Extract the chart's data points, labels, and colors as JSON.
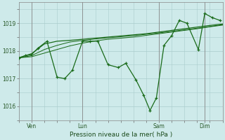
{
  "bg_color": "#ceeaea",
  "grid_color": "#aacccc",
  "line_color": "#1a6b1a",
  "xlabel": "Pression niveau de la mer( hPa )",
  "ylim": [
    1015.5,
    1019.75
  ],
  "yticks": [
    1016,
    1017,
    1018,
    1019
  ],
  "xlim": [
    0,
    8.0
  ],
  "xtick_positions": [
    0.5,
    2.5,
    5.5,
    7.3
  ],
  "xtick_labels": [
    "Ven",
    "Lun",
    "Sam",
    "Dim"
  ],
  "vlines": [
    0.5,
    2.5,
    5.5,
    7.3
  ],
  "line1_x": [
    0.0,
    0.25,
    0.5,
    0.75,
    1.1,
    1.5,
    1.8,
    2.1,
    2.5,
    2.8,
    3.1,
    3.5,
    3.9,
    4.2,
    4.6,
    4.9,
    5.15,
    5.4,
    5.7,
    6.0,
    6.3,
    6.6,
    7.05,
    7.3,
    7.6,
    7.9
  ],
  "line1_y": [
    1017.75,
    1017.83,
    1017.87,
    1018.1,
    1018.35,
    1017.05,
    1017.0,
    1017.3,
    1018.35,
    1018.35,
    1018.35,
    1017.5,
    1017.4,
    1017.55,
    1016.95,
    1016.4,
    1015.85,
    1016.3,
    1018.2,
    1018.55,
    1019.1,
    1019.0,
    1018.05,
    1019.35,
    1019.2,
    1019.1
  ],
  "line2_x": [
    0.0,
    0.5,
    1.0,
    1.5,
    2.0,
    2.5,
    3.0,
    3.5,
    4.0,
    4.5,
    5.0,
    5.5,
    6.0,
    6.5,
    7.0,
    7.5,
    8.0
  ],
  "line2_y": [
    1017.75,
    1017.9,
    1018.25,
    1018.35,
    1018.38,
    1018.42,
    1018.46,
    1018.5,
    1018.54,
    1018.58,
    1018.62,
    1018.68,
    1018.74,
    1018.8,
    1018.86,
    1018.92,
    1018.97
  ],
  "line3_x": [
    0.0,
    0.5,
    1.0,
    1.5,
    2.0,
    2.5,
    3.0,
    3.5,
    4.0,
    4.5,
    5.0,
    5.5,
    6.0,
    6.5,
    7.0,
    7.5,
    8.0
  ],
  "line3_y": [
    1017.75,
    1017.83,
    1018.05,
    1018.2,
    1018.32,
    1018.38,
    1018.43,
    1018.47,
    1018.51,
    1018.55,
    1018.6,
    1018.65,
    1018.7,
    1018.76,
    1018.82,
    1018.88,
    1018.95
  ],
  "line4_x": [
    0.0,
    0.5,
    1.0,
    1.5,
    2.0,
    2.5,
    3.0,
    3.5,
    4.0,
    4.5,
    5.0,
    5.5,
    6.0,
    6.5,
    7.0,
    7.5,
    8.0
  ],
  "line4_y": [
    1017.75,
    1017.79,
    1017.92,
    1018.05,
    1018.18,
    1018.28,
    1018.36,
    1018.42,
    1018.46,
    1018.5,
    1018.56,
    1018.62,
    1018.68,
    1018.74,
    1018.8,
    1018.87,
    1018.93
  ]
}
